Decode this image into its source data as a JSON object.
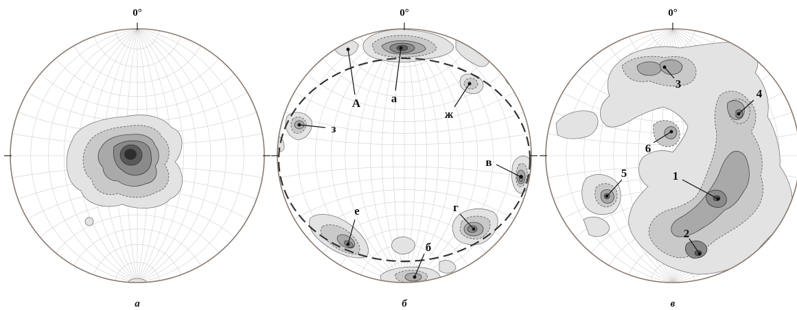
{
  "panels": [
    {
      "id": "a",
      "north_label": "0°",
      "caption": "а",
      "labels": []
    },
    {
      "id": "b",
      "north_label": "0°",
      "caption": "б",
      "labels": [
        {
          "key": "A",
          "text": "А"
        },
        {
          "key": "a",
          "text": "а"
        },
        {
          "key": "zh",
          "text": "ж"
        },
        {
          "key": "z",
          "text": "з"
        },
        {
          "key": "v",
          "text": "в"
        },
        {
          "key": "g",
          "text": "г"
        },
        {
          "key": "e",
          "text": "е"
        },
        {
          "key": "b",
          "text": "б"
        }
      ]
    },
    {
      "id": "c",
      "north_label": "0°",
      "caption": "в",
      "labels": [
        {
          "key": "3",
          "text": "3"
        },
        {
          "key": "4",
          "text": "4"
        },
        {
          "key": "6",
          "text": "6"
        },
        {
          "key": "5",
          "text": "5"
        },
        {
          "key": "1",
          "text": "1"
        },
        {
          "key": "2",
          "text": "2"
        }
      ]
    }
  ],
  "colors": {
    "rim": "#8a7a70",
    "grid": "#cfcfcf",
    "contour_light": "#e3e3e3",
    "contour_dark": "#2e2e2e"
  }
}
